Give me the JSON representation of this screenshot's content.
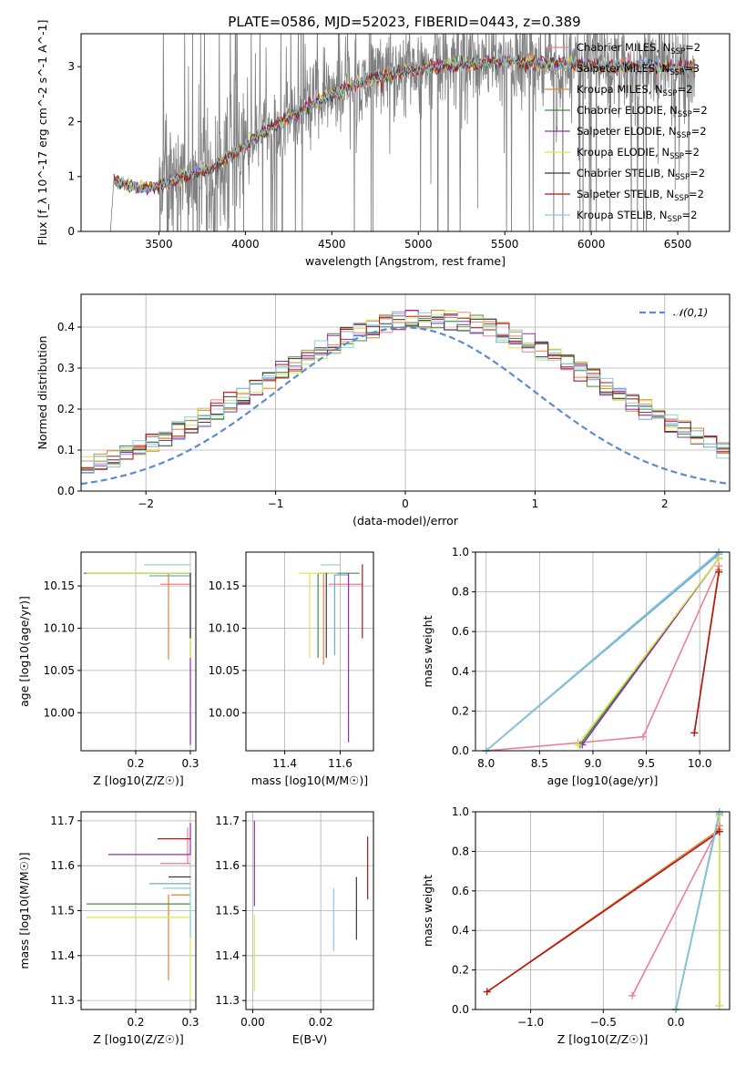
{
  "figure": {
    "title": "PLATE=0586, MJD=52023, FIBERID=0443, z=0.389"
  },
  "models": [
    {
      "name": "Chabrier MILES, N_{SSP}=2",
      "legend_base": "Chabrier MILES, N",
      "legend_sub": "SSP",
      "legend_tail": "=2",
      "color": "#ef7f8f"
    },
    {
      "name": "Salpeter MILES, N_{SSP}=3",
      "legend_base": "Salpeter MILES, N",
      "legend_sub": "SSP",
      "legend_tail": "=3",
      "color": "#6fa8dc"
    },
    {
      "name": "Kroupa MILES, N_{SSP}=2",
      "legend_base": "Kroupa MILES, N",
      "legend_sub": "SSP",
      "legend_tail": "=2",
      "color": "#e0832f"
    },
    {
      "name": "Chabrier ELODIE, N_{SSP}=2",
      "legend_base": "Chabrier ELODIE, N",
      "legend_sub": "SSP",
      "legend_tail": "=2",
      "color": "#3f8f3f"
    },
    {
      "name": "Salpeter ELODIE, N_{SSP}=2",
      "legend_base": "Salpeter ELODIE, N",
      "legend_sub": "SSP",
      "legend_tail": "=2",
      "color": "#8f2fb0"
    },
    {
      "name": "Kroupa ELODIE, N_{SSP}=2",
      "legend_base": "Kroupa ELODIE, N",
      "legend_sub": "SSP",
      "legend_tail": "=2",
      "color": "#d8e84f"
    },
    {
      "name": "Chabrier STELIB, N_{SSP}=2",
      "legend_base": "Chabrier STELIB, N",
      "legend_sub": "SSP",
      "legend_tail": "=2",
      "color": "#3a3a3a"
    },
    {
      "name": "Salpeter STELIB, N_{SSP}=2",
      "legend_base": "Salpeter STELIB, N",
      "legend_sub": "SSP",
      "legend_tail": "=2",
      "color": "#b01818"
    },
    {
      "name": "Kroupa STELIB, N_{SSP}=2",
      "legend_base": "Kroupa STELIB, N",
      "legend_sub": "SSP",
      "legend_tail": "=2",
      "color": "#86cfe0"
    }
  ],
  "chart_data": [
    {
      "id": "spectrum",
      "type": "line",
      "xlabel": "wavelength [Angstrom, rest frame]",
      "ylabel": "Flux [f_λ 10^-17 erg cm^-2 s^-1 A^-1]",
      "xlim": [
        3050,
        6800
      ],
      "ylim": [
        0,
        3.6
      ],
      "xticks": [
        3500,
        4000,
        4500,
        5000,
        5500,
        6000,
        6500
      ],
      "yticks": [
        0,
        1,
        2,
        3
      ],
      "data_color": "#808080",
      "data_x_range": [
        3220,
        6600
      ],
      "continuum": [
        [
          3220,
          0.0
        ],
        [
          3240,
          0.95
        ],
        [
          3300,
          0.85
        ],
        [
          3400,
          0.78
        ],
        [
          3500,
          0.82
        ],
        [
          3650,
          1.0
        ],
        [
          3800,
          1.15
        ],
        [
          3950,
          1.45
        ],
        [
          4100,
          1.8
        ],
        [
          4300,
          2.15
        ],
        [
          4500,
          2.5
        ],
        [
          4700,
          2.75
        ],
        [
          4900,
          2.9
        ],
        [
          5100,
          3.0
        ],
        [
          5300,
          3.05
        ],
        [
          5500,
          3.1
        ],
        [
          5700,
          3.05
        ],
        [
          5900,
          3.05
        ],
        [
          6100,
          3.0
        ],
        [
          6300,
          3.0
        ],
        [
          6500,
          3.0
        ],
        [
          6600,
          3.0
        ]
      ],
      "legend_location": "upper right",
      "grid": false
    },
    {
      "id": "residuals",
      "type": "histogram",
      "xlabel": "(data-model)/error",
      "ylabel": "Normed distribution",
      "xlim": [
        -2.5,
        2.5
      ],
      "ylim": [
        0,
        0.48
      ],
      "xticks": [
        -2,
        -1,
        0,
        1,
        2
      ],
      "yticks": [
        0.0,
        0.1,
        0.2,
        0.3,
        0.4
      ],
      "bin_width": 0.1,
      "reference_curve": {
        "name": "𝒩(0,1)",
        "style": "dashed",
        "color": "#5b8ad6",
        "mu": 0,
        "sigma": 1
      },
      "legend_location": "upper right",
      "grid": true
    },
    {
      "id": "age_vs_Z",
      "type": "errorbar",
      "xlabel": "Z [log10(Z/Z☉)]",
      "ylabel": "age  [log10(age/yr)]",
      "xlim": [
        0.1,
        0.31
      ],
      "ylim": [
        9.955,
        10.19
      ],
      "xticks": [
        0.2,
        0.3
      ],
      "yticks": [
        10.0,
        10.05,
        10.1,
        10.15
      ],
      "points": [
        {
          "model": 0,
          "x": 0.295,
          "y": 10.152,
          "xerr": [
            0.05,
            0.005
          ],
          "yerr": [
            0.0,
            0.0
          ]
        },
        {
          "model": 1,
          "x": 0.295,
          "y": 10.162,
          "xerr": [
            0.07,
            0.005
          ],
          "yerr": [
            0.0,
            0.0
          ]
        },
        {
          "model": 2,
          "x": 0.295,
          "y": 10.165,
          "xerr": [
            0.19,
            0.005
          ],
          "yerr": [
            0.0,
            0.0
          ]
        },
        {
          "model": 2,
          "x": 0.26,
          "y": 10.165,
          "xerr": [
            0.0,
            0.0
          ],
          "yerr": [
            0.102,
            0.0
          ]
        },
        {
          "model": 3,
          "x": 0.295,
          "y": 10.165,
          "xerr": [
            0.19,
            0.005
          ],
          "yerr": [
            0.0,
            0.0
          ]
        },
        {
          "model": 4,
          "x": 0.3,
          "y": 10.165,
          "xerr": [
            0.0,
            0.0
          ],
          "yerr": [
            0.203,
            0.0
          ]
        },
        {
          "model": 5,
          "x": 0.3,
          "y": 10.165,
          "xerr": [
            0.19,
            0.0
          ],
          "yerr": [
            0.1,
            0.0
          ]
        },
        {
          "model": 6,
          "x": 0.3,
          "y": 10.165,
          "xerr": [
            0.0,
            0.0
          ],
          "yerr": [
            0.077,
            0.0
          ]
        },
        {
          "model": 8,
          "x": 0.295,
          "y": 10.175,
          "xerr": [
            0.08,
            0.005
          ],
          "yerr": [
            0.0,
            0.0
          ]
        }
      ],
      "grid": true
    },
    {
      "id": "age_vs_mass",
      "type": "errorbar",
      "xlabel": "mass [log10(M/M☉)]",
      "ylabel": "",
      "xlim": [
        11.26,
        11.72
      ],
      "ylim": [
        9.955,
        10.19
      ],
      "xticks": [
        11.4,
        11.6
      ],
      "yticks": [
        10.0,
        10.05,
        10.1,
        10.15
      ],
      "points": [
        {
          "model": 0,
          "x": 11.56,
          "y": 10.152,
          "xerr": [
            0.0,
            0.12
          ],
          "yerr": [
            0.0,
            0.0
          ]
        },
        {
          "model": 1,
          "x": 11.58,
          "y": 10.163,
          "xerr": [
            0.0,
            0.05
          ],
          "yerr": [
            0.095,
            0.0
          ]
        },
        {
          "model": 2,
          "x": 11.54,
          "y": 10.165,
          "xerr": [
            0.0,
            0.0
          ],
          "yerr": [
            0.108,
            0.0
          ]
        },
        {
          "model": 3,
          "x": 11.52,
          "y": 10.165,
          "xerr": [
            0.0,
            0.15
          ],
          "yerr": [
            0.1,
            0.0
          ]
        },
        {
          "model": 4,
          "x": 11.63,
          "y": 10.165,
          "xerr": [
            0.0,
            0.0
          ],
          "yerr": [
            0.2,
            0.0
          ]
        },
        {
          "model": 5,
          "x": 11.49,
          "y": 10.165,
          "xerr": [
            0.04,
            0.1
          ],
          "yerr": [
            0.1,
            0.0
          ]
        },
        {
          "model": 6,
          "x": 11.55,
          "y": 10.165,
          "xerr": [
            0.0,
            0.0
          ],
          "yerr": [
            0.1,
            0.0
          ]
        },
        {
          "model": 7,
          "x": 11.68,
          "y": 10.175,
          "xerr": [
            0.0,
            0.0
          ],
          "yerr": [
            0.087,
            0.0
          ]
        },
        {
          "model": 8,
          "x": 11.58,
          "y": 10.175,
          "xerr": [
            0.05,
            0.02
          ],
          "yerr": [
            0.0,
            0.0
          ]
        }
      ],
      "grid": true
    },
    {
      "id": "massweight_vs_age",
      "type": "line",
      "xlabel": "age  [log10(age/yr)]",
      "ylabel": "mass weight",
      "xlim": [
        7.9,
        10.28
      ],
      "ylim": [
        0,
        1.0
      ],
      "xticks": [
        8.0,
        8.5,
        9.0,
        9.5,
        10.0
      ],
      "yticks": [
        0.0,
        0.2,
        0.4,
        0.6,
        0.8,
        1.0
      ],
      "series": [
        {
          "model": 0,
          "points": [
            [
              8.0,
              0.0
            ],
            [
              8.86,
              0.04
            ],
            [
              9.47,
              0.07
            ],
            [
              10.18,
              0.93
            ]
          ]
        },
        {
          "model": 1,
          "points": [
            [
              8.0,
              0.0
            ],
            [
              10.18,
              0.99
            ]
          ]
        },
        {
          "model": 2,
          "points": [
            [
              9.95,
              0.09
            ],
            [
              10.18,
              0.91
            ]
          ]
        },
        {
          "model": 3,
          "points": [
            [
              8.88,
              0.03
            ],
            [
              10.18,
              0.97
            ]
          ]
        },
        {
          "model": 4,
          "points": [
            [
              8.9,
              0.03
            ],
            [
              10.18,
              0.97
            ]
          ]
        },
        {
          "model": 5,
          "points": [
            [
              8.86,
              0.03
            ],
            [
              10.18,
              0.97
            ]
          ]
        },
        {
          "model": 6,
          "points": [
            [
              8.0,
              0.0
            ],
            [
              10.18,
              1.0
            ]
          ]
        },
        {
          "model": 7,
          "points": [
            [
              9.95,
              0.09
            ],
            [
              10.18,
              0.9
            ]
          ]
        },
        {
          "model": 8,
          "points": [
            [
              8.0,
              0.0
            ],
            [
              10.18,
              1.0
            ]
          ]
        }
      ],
      "grid": true
    },
    {
      "id": "mass_vs_Z",
      "type": "errorbar",
      "xlabel": "Z [log10(Z/Z☉)]",
      "ylabel": "mass [log10(M/M☉)]",
      "xlim": [
        0.1,
        0.31
      ],
      "ylim": [
        11.28,
        11.72
      ],
      "xticks": [
        0.2,
        0.3
      ],
      "yticks": [
        11.3,
        11.4,
        11.5,
        11.6,
        11.7
      ],
      "points": [
        {
          "model": 0,
          "x": 0.295,
          "y": 11.605,
          "xerr": [
            0.05,
            0.005
          ],
          "yerr": [
            0.0,
            0.08
          ]
        },
        {
          "model": 1,
          "x": 0.295,
          "y": 11.56,
          "xerr": [
            0.07,
            0.005
          ],
          "yerr": [
            0.0,
            0.0
          ]
        },
        {
          "model": 2,
          "x": 0.295,
          "y": 11.535,
          "xerr": [
            0.03,
            0.005
          ],
          "yerr": [
            0.0,
            0.0
          ]
        },
        {
          "model": 2,
          "x": 0.26,
          "y": 11.535,
          "xerr": [
            0.0,
            0.0
          ],
          "yerr": [
            0.19,
            0.0
          ]
        },
        {
          "model": 3,
          "x": 0.3,
          "y": 11.515,
          "xerr": [
            0.19,
            0.0
          ],
          "yerr": [
            0.0,
            0.0
          ]
        },
        {
          "model": 4,
          "x": 0.3,
          "y": 11.625,
          "xerr": [
            0.15,
            0.0
          ],
          "yerr": [
            0.0,
            0.07
          ]
        },
        {
          "model": 5,
          "x": 0.3,
          "y": 11.485,
          "xerr": [
            0.19,
            0.0
          ],
          "yerr": [
            0.18,
            0.0
          ]
        },
        {
          "model": 6,
          "x": 0.3,
          "y": 11.575,
          "xerr": [
            0.04,
            0.0
          ],
          "yerr": [
            0.0,
            0.0
          ]
        },
        {
          "model": 7,
          "x": 0.3,
          "y": 11.66,
          "xerr": [
            0.06,
            0.0
          ],
          "yerr": [
            0.0,
            0.0
          ]
        },
        {
          "model": 8,
          "x": 0.3,
          "y": 11.55,
          "xerr": [
            0.05,
            0.0
          ],
          "yerr": [
            0.11,
            0.0
          ]
        }
      ],
      "grid": true
    },
    {
      "id": "mass_vs_ebv",
      "type": "errorbar",
      "xlabel": "E(B-V)",
      "ylabel": "",
      "xlim": [
        -0.002,
        0.0355
      ],
      "ylim": [
        11.28,
        11.72
      ],
      "xticks": [
        0.0,
        0.02
      ],
      "yticks": [
        11.3,
        11.4,
        11.5,
        11.6,
        11.7
      ],
      "points": [
        {
          "model": 0,
          "x": 0.0,
          "y": 11.6,
          "xerr": [
            0,
            0
          ],
          "yerr": [
            0.0,
            0.0
          ]
        },
        {
          "model": 4,
          "x": 0.0005,
          "y": 11.6,
          "xerr": [
            0,
            0
          ],
          "yerr": [
            0.09,
            0.1
          ]
        },
        {
          "model": 5,
          "x": 0.0005,
          "y": 11.42,
          "xerr": [
            0,
            0
          ],
          "yerr": [
            0.1,
            0.07
          ]
        },
        {
          "model": 6,
          "x": 0.0305,
          "y": 11.505,
          "xerr": [
            0,
            0
          ],
          "yerr": [
            0.07,
            0.07
          ]
        },
        {
          "model": 7,
          "x": 0.0338,
          "y": 11.595,
          "xerr": [
            0,
            0
          ],
          "yerr": [
            0.07,
            0.07
          ]
        },
        {
          "model": 8,
          "x": 0.0238,
          "y": 11.48,
          "xerr": [
            0,
            0
          ],
          "yerr": [
            0.07,
            0.07
          ]
        }
      ],
      "grid": true
    },
    {
      "id": "massweight_vs_Z",
      "type": "line",
      "xlabel": "Z [log10(Z/Z☉)]",
      "ylabel": "mass weight",
      "xlim": [
        -1.38,
        0.37
      ],
      "ylim": [
        0,
        1.0
      ],
      "xticks": [
        -1.0,
        -0.5,
        0.0
      ],
      "yticks": [
        0.0,
        0.2,
        0.4,
        0.6,
        0.8,
        1.0
      ],
      "series": [
        {
          "model": 0,
          "points": [
            [
              -0.3,
              0.07
            ],
            [
              0.3,
              0.93
            ]
          ]
        },
        {
          "model": 1,
          "points": [
            [
              0.0,
              0.0
            ],
            [
              0.3,
              0.99
            ]
          ]
        },
        {
          "model": 2,
          "points": [
            [
              -1.3,
              0.09
            ],
            [
              0.3,
              0.91
            ]
          ]
        },
        {
          "model": 3,
          "points": [
            [
              0.3,
              0.02
            ],
            [
              0.3,
              0.98
            ]
          ]
        },
        {
          "model": 4,
          "points": [
            [
              0.3,
              0.02
            ],
            [
              0.3,
              0.98
            ]
          ]
        },
        {
          "model": 5,
          "points": [
            [
              0.3,
              0.02
            ],
            [
              0.3,
              0.98
            ]
          ]
        },
        {
          "model": 6,
          "points": [
            [
              0.0,
              0.0
            ],
            [
              0.3,
              1.0
            ]
          ]
        },
        {
          "model": 7,
          "points": [
            [
              -1.3,
              0.09
            ],
            [
              0.3,
              0.9
            ]
          ]
        },
        {
          "model": 8,
          "points": [
            [
              0.0,
              0.0
            ],
            [
              0.3,
              1.0
            ]
          ]
        }
      ],
      "grid": true
    }
  ]
}
